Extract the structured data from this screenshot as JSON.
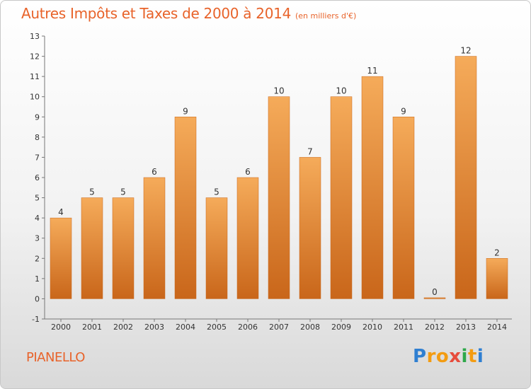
{
  "title": {
    "main": "Autres Impôts et Taxes de 2000 à 2014",
    "unit": "(en milliers d'€)"
  },
  "commune": "PIANELLO",
  "logo": {
    "text": "Proxiti",
    "letters": [
      {
        "ch": "P",
        "color": "#2f7fd1"
      },
      {
        "ch": "r",
        "color": "#f39c12"
      },
      {
        "ch": "o",
        "color": "#f39c12"
      },
      {
        "ch": "x",
        "color": "#e74c3c"
      },
      {
        "ch": "i",
        "color": "#2ea84a"
      },
      {
        "ch": "t",
        "color": "#f39c12"
      },
      {
        "ch": "i",
        "color": "#2f7fd1"
      }
    ]
  },
  "chart_data": {
    "type": "bar",
    "categories": [
      "2000",
      "2001",
      "2002",
      "2003",
      "2004",
      "2005",
      "2006",
      "2007",
      "2008",
      "2009",
      "2010",
      "2011",
      "2012",
      "2013",
      "2014"
    ],
    "values": [
      4,
      5,
      5,
      6,
      9,
      5,
      6,
      10,
      7,
      10,
      11,
      9,
      0,
      12,
      2
    ],
    "ylim": [
      -1,
      13
    ],
    "yticks": [
      -1,
      0,
      1,
      2,
      3,
      4,
      5,
      6,
      7,
      8,
      9,
      10,
      11,
      12,
      13
    ],
    "xlabel": "",
    "ylabel": "",
    "bar_color": "#e8822e",
    "bar_highlight": "#f5ab5a",
    "bar_shadow": "#c9661a",
    "grid": false,
    "show_data_labels": true
  }
}
